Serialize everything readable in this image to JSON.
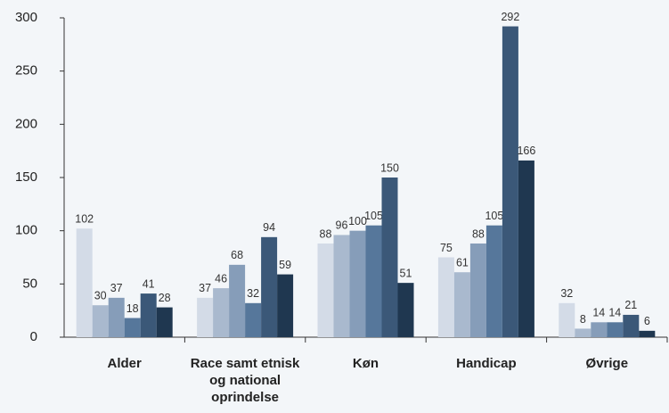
{
  "chart_data": {
    "type": "bar",
    "categories": [
      "Alder",
      "Race samt etnisk og national oprindelse",
      "Køn",
      "Handicap",
      "Øvrige"
    ],
    "series": [
      {
        "color": "#d3dbe7",
        "values": [
          102,
          37,
          88,
          75,
          32
        ]
      },
      {
        "color": "#a9b9ce",
        "values": [
          30,
          46,
          96,
          61,
          8
        ]
      },
      {
        "color": "#869db9",
        "values": [
          37,
          68,
          100,
          88,
          14
        ]
      },
      {
        "color": "#56779b",
        "values": [
          18,
          32,
          105,
          105,
          14
        ]
      },
      {
        "color": "#3b5878",
        "values": [
          41,
          94,
          150,
          292,
          21
        ]
      },
      {
        "color": "#1f3750",
        "values": [
          28,
          59,
          51,
          166,
          6
        ]
      }
    ],
    "ylim": [
      0,
      300
    ],
    "yticks": [
      0,
      50,
      100,
      150,
      200,
      250,
      300
    ],
    "grid": false
  }
}
